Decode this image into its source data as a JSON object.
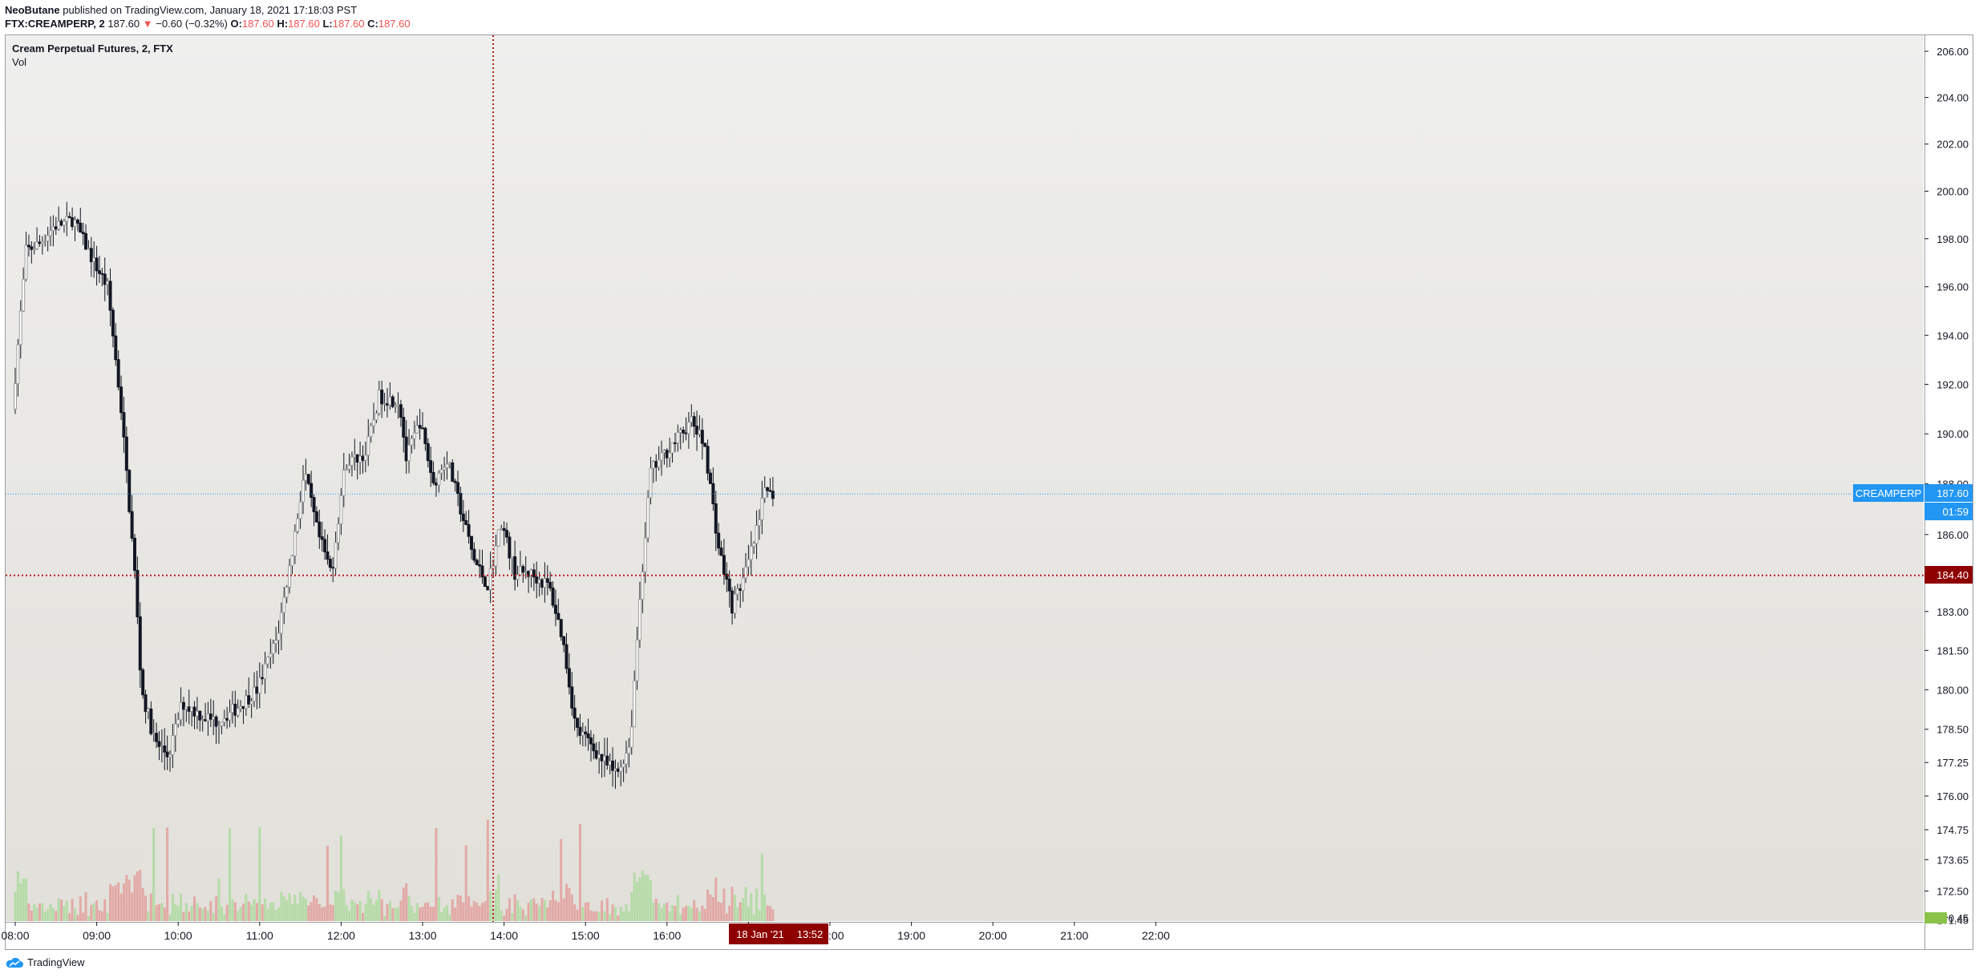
{
  "header": {
    "author": "NeoButane",
    "published_text": "published on TradingView.com, January 18, 2021 17:18:03 PST",
    "symbol": "FTX:CREAMPERP, 2",
    "last": "187.60",
    "change_arrow": "▼",
    "change": "−0.60 (−0.32%)",
    "o_label": "O:",
    "o": "187.60",
    "h_label": "H:",
    "h": "187.60",
    "l_label": "L:",
    "l": "187.60",
    "c_label": "C:",
    "c": "187.60"
  },
  "legend": {
    "title": "Cream Perpetual Futures, 2, FTX",
    "vol": "Vol"
  },
  "markers": {
    "symbol_tag": "CREAMPERP",
    "last_price": "187.60",
    "countdown": "01:59",
    "crosshair_price": "184.40",
    "crosshair_date": "18 Jan '21",
    "crosshair_time": "13:52",
    "volume_tag": "0.45"
  },
  "footer": {
    "brand": "TradingView"
  },
  "colors": {
    "up": "#9e9e9e",
    "down": "#131722",
    "vol_up": "#b5dba7",
    "vol_down": "#e2a9a6",
    "last_price": "#2196f3",
    "crosshair": "#b71c1c"
  },
  "chart_data": {
    "type": "candlestick",
    "title": "Cream Perpetual Futures, 2, FTX",
    "y_axis_ticks": [
      "206.00",
      "204.00",
      "202.00",
      "200.00",
      "198.00",
      "196.00",
      "194.00",
      "192.00",
      "190.00",
      "188.00",
      "186.00",
      "183.00",
      "181.50",
      "180.00",
      "178.50",
      "177.25",
      "176.00",
      "174.75",
      "173.65",
      "172.50",
      "171.45"
    ],
    "y_axis_scale": "logarithmic",
    "x_axis_ticks": [
      "08:00",
      "09:00",
      "10:00",
      "11:00",
      "12:00",
      "13:00",
      "14:00",
      "15:00",
      "16:00",
      "17:00",
      "18:00",
      "19:00",
      "20:00",
      "21:00",
      "22:00"
    ],
    "bar_interval_minutes": 2,
    "approx_price_path": [
      {
        "time": "08:00",
        "price": 191.0
      },
      {
        "time": "08:10",
        "price": 197.5
      },
      {
        "time": "08:20",
        "price": 197.8
      },
      {
        "time": "08:30",
        "price": 198.5
      },
      {
        "time": "08:45",
        "price": 198.8
      },
      {
        "time": "09:00",
        "price": 197.0
      },
      {
        "time": "09:10",
        "price": 196.0
      },
      {
        "time": "09:20",
        "price": 191.0
      },
      {
        "time": "09:30",
        "price": 184.5
      },
      {
        "time": "09:35",
        "price": 180.0
      },
      {
        "time": "09:45",
        "price": 178.0
      },
      {
        "time": "09:55",
        "price": 177.5
      },
      {
        "time": "10:05",
        "price": 179.5
      },
      {
        "time": "10:20",
        "price": 179.0
      },
      {
        "time": "10:30",
        "price": 178.8
      },
      {
        "time": "10:45",
        "price": 179.3
      },
      {
        "time": "11:00",
        "price": 180.0
      },
      {
        "time": "11:15",
        "price": 182.0
      },
      {
        "time": "11:25",
        "price": 185.0
      },
      {
        "time": "11:35",
        "price": 188.5
      },
      {
        "time": "11:45",
        "price": 186.0
      },
      {
        "time": "11:55",
        "price": 184.5
      },
      {
        "time": "12:05",
        "price": 188.8
      },
      {
        "time": "12:20",
        "price": 189.2
      },
      {
        "time": "12:30",
        "price": 191.5
      },
      {
        "time": "12:45",
        "price": 191.3
      },
      {
        "time": "12:50",
        "price": 189.0
      },
      {
        "time": "13:00",
        "price": 190.5
      },
      {
        "time": "13:10",
        "price": 188.0
      },
      {
        "time": "13:20",
        "price": 189.0
      },
      {
        "time": "13:30",
        "price": 187.0
      },
      {
        "time": "13:40",
        "price": 185.0
      },
      {
        "time": "13:50",
        "price": 184.0
      },
      {
        "time": "14:00",
        "price": 186.5
      },
      {
        "time": "14:10",
        "price": 184.5
      },
      {
        "time": "14:20",
        "price": 184.5
      },
      {
        "time": "14:35",
        "price": 184.0
      },
      {
        "time": "14:45",
        "price": 182.0
      },
      {
        "time": "14:55",
        "price": 178.5
      },
      {
        "time": "15:05",
        "price": 178.0
      },
      {
        "time": "15:15",
        "price": 177.3
      },
      {
        "time": "15:25",
        "price": 176.8
      },
      {
        "time": "15:35",
        "price": 178.0
      },
      {
        "time": "15:42",
        "price": 183.5
      },
      {
        "time": "15:50",
        "price": 188.5
      },
      {
        "time": "16:05",
        "price": 189.5
      },
      {
        "time": "16:20",
        "price": 190.5
      },
      {
        "time": "16:30",
        "price": 189.5
      },
      {
        "time": "16:40",
        "price": 185.5
      },
      {
        "time": "16:50",
        "price": 183.2
      },
      {
        "time": "17:00",
        "price": 184.5
      },
      {
        "time": "17:10",
        "price": 186.5
      },
      {
        "time": "17:15",
        "price": 188.2
      },
      {
        "time": "17:18",
        "price": 187.6
      }
    ],
    "last_price": 187.6,
    "crosshair": {
      "price": 184.4,
      "time": "13:52",
      "date": "18 Jan '21"
    }
  }
}
